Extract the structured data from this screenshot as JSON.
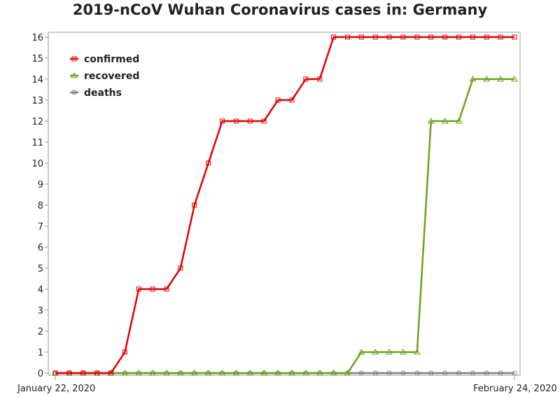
{
  "chart_data": {
    "type": "line",
    "title": "2019-nCoV Wuhan Coronavirus cases in: Germany",
    "xlabel": "",
    "ylabel": "",
    "x_start_label": "January 22, 2020",
    "x_end_label": "February 24, 2020",
    "ylim": [
      0,
      16
    ],
    "yticks": [
      0,
      1,
      2,
      3,
      4,
      5,
      6,
      7,
      8,
      9,
      10,
      11,
      12,
      13,
      14,
      15,
      16
    ],
    "grid": false,
    "legend": "top-left",
    "series": [
      {
        "name": "confirmed",
        "color": "#e00000",
        "marker": "square",
        "values": [
          0,
          0,
          0,
          0,
          0,
          1,
          4,
          4,
          4,
          5,
          8,
          10,
          12,
          12,
          12,
          12,
          13,
          13,
          14,
          14,
          16,
          16,
          16,
          16,
          16,
          16,
          16,
          16,
          16,
          16,
          16,
          16,
          16,
          16
        ]
      },
      {
        "name": "recovered",
        "color": "#6aa31d",
        "marker": "triangle",
        "values": [
          0,
          0,
          0,
          0,
          0,
          0,
          0,
          0,
          0,
          0,
          0,
          0,
          0,
          0,
          0,
          0,
          0,
          0,
          0,
          0,
          0,
          0,
          1,
          1,
          1,
          1,
          1,
          12,
          12,
          12,
          14,
          14,
          14,
          14
        ]
      },
      {
        "name": "deaths",
        "color": "#7f7f7f",
        "marker": "circle",
        "values": [
          0,
          0,
          0,
          0,
          0,
          0,
          0,
          0,
          0,
          0,
          0,
          0,
          0,
          0,
          0,
          0,
          0,
          0,
          0,
          0,
          0,
          0,
          0,
          0,
          0,
          0,
          0,
          0,
          0,
          0,
          0,
          0,
          0,
          0
        ]
      }
    ]
  }
}
